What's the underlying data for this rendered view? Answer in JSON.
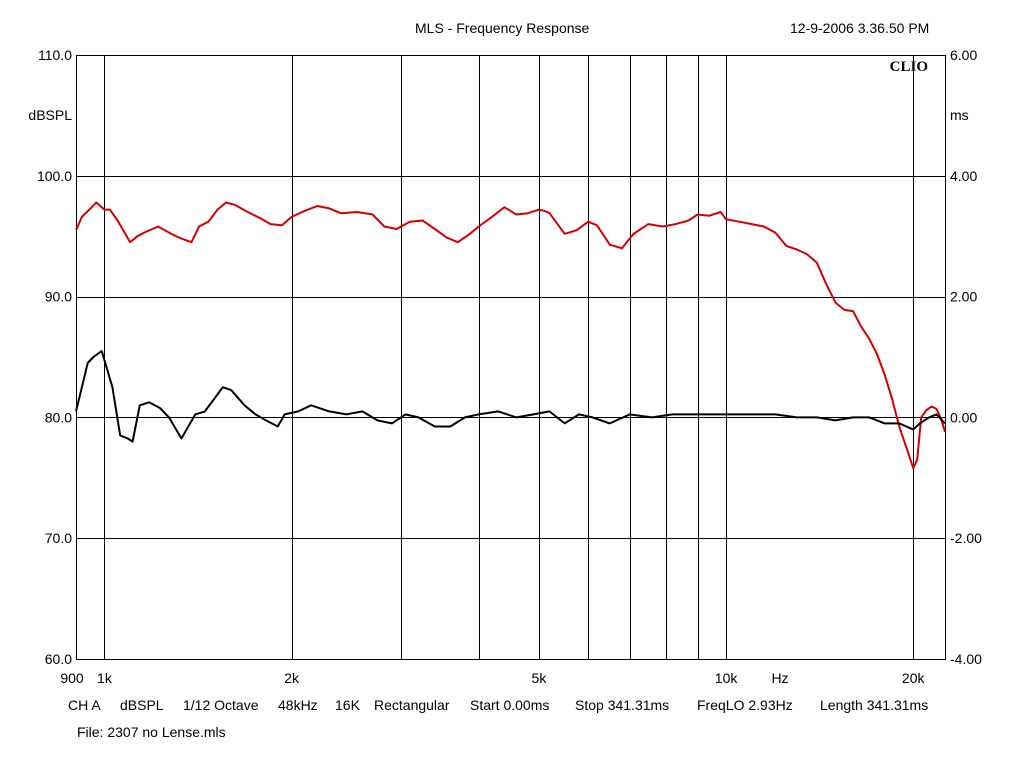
{
  "header": {
    "title": "MLS - Frequency Response",
    "timestamp": "12-9-2006 3.36.50 PM",
    "logo": "CLIO"
  },
  "footer": {
    "params": [
      "CH A",
      "dBSPL",
      "1/12 Octave",
      "48kHz",
      "16K",
      "Rectangular",
      "Start 0.00ms",
      "Stop 341.31ms",
      "FreqLO 2.93Hz",
      "Length 341.31ms"
    ],
    "file": "File: 2307 no Lense.mls"
  },
  "chart_data": {
    "type": "line",
    "title": "MLS - Frequency Response",
    "x_scale": "log",
    "xlim": [
      900,
      22500
    ],
    "x_unit": "Hz",
    "x_ticks": [
      {
        "value": 900,
        "label": "900"
      },
      {
        "value": 1000,
        "label": "1k"
      },
      {
        "value": 2000,
        "label": "2k"
      },
      {
        "value": 5000,
        "label": "5k"
      },
      {
        "value": 10000,
        "label": "10k"
      },
      {
        "value": 20000,
        "label": "20k"
      }
    ],
    "x_gridlines": [
      1000,
      2000,
      3000,
      4000,
      5000,
      6000,
      7000,
      8000,
      9000,
      10000,
      20000
    ],
    "y_left": {
      "unit": "dBSPL",
      "ylim": [
        60,
        110
      ],
      "ticks": [
        "60.0",
        "70.0",
        "80.0",
        "90.0",
        "100.0",
        "110.0"
      ],
      "tick_values": [
        60,
        70,
        80,
        90,
        100,
        110
      ]
    },
    "y_right": {
      "unit": "ms",
      "ylim": [
        -4,
        6
      ],
      "ticks": [
        "-4.00",
        "-2.00",
        "0.00",
        "2.00",
        "4.00",
        "6.00"
      ],
      "tick_values": [
        -4,
        -2,
        0,
        2,
        4,
        6
      ]
    },
    "grid": true,
    "series": [
      {
        "axis": "left",
        "color": "#d40000",
        "points": [
          [
            900,
            95.5
          ],
          [
            920,
            96.6
          ],
          [
            950,
            97.3
          ],
          [
            970,
            97.8
          ],
          [
            1000,
            97.2
          ],
          [
            1020,
            97.2
          ],
          [
            1050,
            96.3
          ],
          [
            1080,
            95.2
          ],
          [
            1100,
            94.5
          ],
          [
            1130,
            95.0
          ],
          [
            1170,
            95.4
          ],
          [
            1220,
            95.8
          ],
          [
            1280,
            95.2
          ],
          [
            1330,
            94.8
          ],
          [
            1380,
            94.5
          ],
          [
            1420,
            95.8
          ],
          [
            1470,
            96.2
          ],
          [
            1520,
            97.2
          ],
          [
            1570,
            97.8
          ],
          [
            1620,
            97.6
          ],
          [
            1700,
            97.0
          ],
          [
            1780,
            96.5
          ],
          [
            1850,
            96.0
          ],
          [
            1930,
            95.9
          ],
          [
            2000,
            96.6
          ],
          [
            2100,
            97.1
          ],
          [
            2200,
            97.5
          ],
          [
            2300,
            97.3
          ],
          [
            2400,
            96.9
          ],
          [
            2550,
            97.0
          ],
          [
            2700,
            96.8
          ],
          [
            2820,
            95.8
          ],
          [
            2950,
            95.6
          ],
          [
            3100,
            96.2
          ],
          [
            3250,
            96.3
          ],
          [
            3400,
            95.6
          ],
          [
            3550,
            94.9
          ],
          [
            3700,
            94.5
          ],
          [
            3850,
            95.1
          ],
          [
            4000,
            95.8
          ],
          [
            4200,
            96.6
          ],
          [
            4400,
            97.4
          ],
          [
            4600,
            96.8
          ],
          [
            4800,
            96.9
          ],
          [
            5000,
            97.2
          ],
          [
            5100,
            97.1
          ],
          [
            5200,
            96.9
          ],
          [
            5500,
            95.2
          ],
          [
            5750,
            95.5
          ],
          [
            6000,
            96.2
          ],
          [
            6200,
            95.9
          ],
          [
            6500,
            94.3
          ],
          [
            6800,
            94.0
          ],
          [
            7100,
            95.2
          ],
          [
            7500,
            96.0
          ],
          [
            7900,
            95.8
          ],
          [
            8300,
            96.0
          ],
          [
            8700,
            96.3
          ],
          [
            9000,
            96.8
          ],
          [
            9400,
            96.7
          ],
          [
            9800,
            97.0
          ],
          [
            10000,
            96.4
          ],
          [
            10500,
            96.2
          ],
          [
            11000,
            96.0
          ],
          [
            11500,
            95.8
          ],
          [
            12000,
            95.3
          ],
          [
            12500,
            94.2
          ],
          [
            13000,
            93.9
          ],
          [
            13500,
            93.5
          ],
          [
            14000,
            92.8
          ],
          [
            14500,
            91.0
          ],
          [
            15000,
            89.5
          ],
          [
            15500,
            88.9
          ],
          [
            16000,
            88.8
          ],
          [
            16500,
            87.5
          ],
          [
            17000,
            86.5
          ],
          [
            17500,
            85.2
          ],
          [
            18000,
            83.5
          ],
          [
            18500,
            81.5
          ],
          [
            19000,
            79.2
          ],
          [
            19500,
            77.5
          ],
          [
            20000,
            75.8
          ],
          [
            20300,
            76.5
          ],
          [
            20600,
            80.0
          ],
          [
            21000,
            80.6
          ],
          [
            21400,
            80.9
          ],
          [
            21800,
            80.7
          ],
          [
            22200,
            79.8
          ],
          [
            22500,
            78.8
          ]
        ]
      },
      {
        "axis": "right",
        "color": "#000000",
        "points": [
          [
            900,
            0.1
          ],
          [
            920,
            0.5
          ],
          [
            940,
            0.9
          ],
          [
            960,
            1.0
          ],
          [
            990,
            1.1
          ],
          [
            1010,
            0.8
          ],
          [
            1030,
            0.5
          ],
          [
            1060,
            -0.3
          ],
          [
            1090,
            -0.35
          ],
          [
            1110,
            -0.4
          ],
          [
            1140,
            0.2
          ],
          [
            1180,
            0.25
          ],
          [
            1230,
            0.15
          ],
          [
            1270,
            0.0
          ],
          [
            1330,
            -0.35
          ],
          [
            1400,
            0.05
          ],
          [
            1450,
            0.1
          ],
          [
            1500,
            0.3
          ],
          [
            1550,
            0.5
          ],
          [
            1600,
            0.45
          ],
          [
            1680,
            0.2
          ],
          [
            1750,
            0.05
          ],
          [
            1820,
            -0.05
          ],
          [
            1900,
            -0.15
          ],
          [
            1950,
            0.05
          ],
          [
            2050,
            0.1
          ],
          [
            2150,
            0.2
          ],
          [
            2300,
            0.1
          ],
          [
            2450,
            0.05
          ],
          [
            2600,
            0.1
          ],
          [
            2750,
            -0.05
          ],
          [
            2900,
            -0.1
          ],
          [
            3050,
            0.05
          ],
          [
            3200,
            0.0
          ],
          [
            3400,
            -0.15
          ],
          [
            3600,
            -0.15
          ],
          [
            3800,
            0.0
          ],
          [
            4000,
            0.05
          ],
          [
            4300,
            0.1
          ],
          [
            4600,
            0.0
          ],
          [
            4900,
            0.05
          ],
          [
            5200,
            0.1
          ],
          [
            5500,
            -0.1
          ],
          [
            5800,
            0.05
          ],
          [
            6100,
            0.0
          ],
          [
            6500,
            -0.1
          ],
          [
            7000,
            0.05
          ],
          [
            7600,
            0.0
          ],
          [
            8200,
            0.05
          ],
          [
            9000,
            0.05
          ],
          [
            10000,
            0.05
          ],
          [
            11000,
            0.05
          ],
          [
            12000,
            0.05
          ],
          [
            13000,
            0.0
          ],
          [
            14000,
            0.0
          ],
          [
            15000,
            -0.05
          ],
          [
            16000,
            0.0
          ],
          [
            17000,
            0.0
          ],
          [
            18000,
            -0.1
          ],
          [
            19000,
            -0.1
          ],
          [
            20000,
            -0.2
          ],
          [
            20500,
            -0.1
          ],
          [
            21200,
            0.0
          ],
          [
            21800,
            0.05
          ],
          [
            22500,
            -0.1
          ]
        ]
      }
    ]
  }
}
